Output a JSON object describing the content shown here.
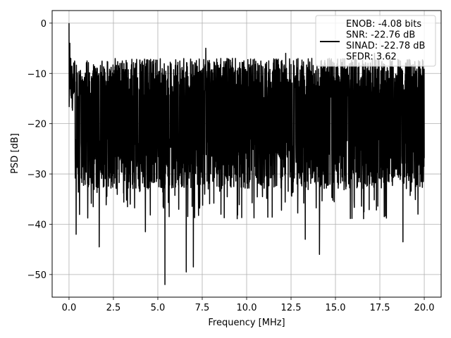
{
  "chart_data": {
    "type": "line",
    "title": "",
    "xlabel": "Frequency [MHz]",
    "ylabel": "PSD [dB]",
    "xlim": [
      -0.95,
      20.95
    ],
    "ylim": [
      -54.5,
      2.5
    ],
    "grid": true,
    "legend_position": "top-right",
    "x_ticks": [
      0.0,
      2.5,
      5.0,
      7.5,
      10.0,
      12.5,
      15.0,
      17.5,
      20.0
    ],
    "x_tick_labels": [
      "0.0",
      "2.5",
      "5.0",
      "7.5",
      "10.0",
      "12.5",
      "15.0",
      "17.5",
      "20.0"
    ],
    "y_ticks": [
      0,
      -10,
      -20,
      -30,
      -40,
      -50
    ],
    "y_tick_labels": [
      "0",
      "−10",
      "−20",
      "−30",
      "−40",
      "−50"
    ],
    "series": [
      {
        "color": "#000000",
        "legend_lines": [
          "ENOB: -4.08 bits",
          "SNR: -22.76 dB",
          "SINAD: -22.78 dB",
          "SFDR: 3.62"
        ],
        "x_range": [
          0,
          20
        ],
        "noise_floor_db": -19,
        "peaks": [
          {
            "x": 0.0,
            "y": 0
          },
          {
            "x": 0.05,
            "y": -4
          },
          {
            "x": 0.1,
            "y": -7
          },
          {
            "x": 7.7,
            "y": -5
          },
          {
            "x": 12.2,
            "y": -6
          },
          {
            "x": 17.2,
            "y": -6
          }
        ],
        "notches": [
          {
            "x": 0.4,
            "y": -42
          },
          {
            "x": 1.7,
            "y": -44.5
          },
          {
            "x": 4.3,
            "y": -41.5
          },
          {
            "x": 5.4,
            "y": -52
          },
          {
            "x": 6.6,
            "y": -49.5
          },
          {
            "x": 7.0,
            "y": -48.5
          },
          {
            "x": 13.3,
            "y": -43
          },
          {
            "x": 14.1,
            "y": -46
          },
          {
            "x": 18.8,
            "y": -43.5
          }
        ]
      }
    ]
  }
}
